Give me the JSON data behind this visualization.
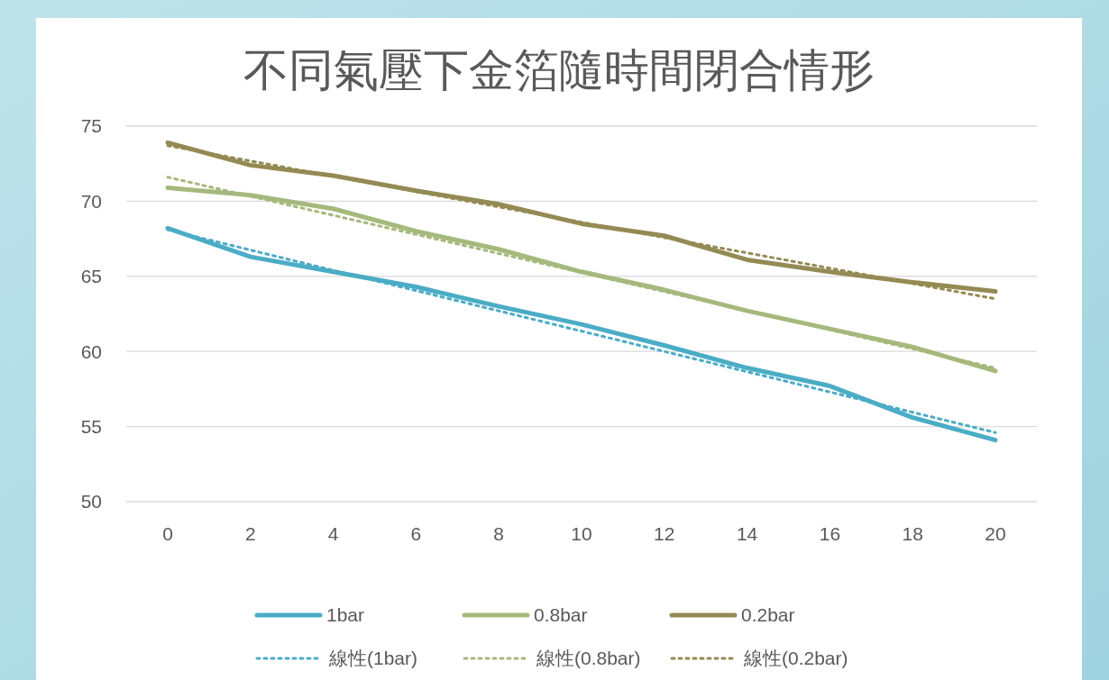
{
  "chart_data": {
    "type": "line",
    "title": "不同氣壓下金箔隨時間閉合情形",
    "categories": [
      "0",
      "2",
      "4",
      "6",
      "8",
      "10",
      "12",
      "14",
      "16",
      "18",
      "20"
    ],
    "ylim": [
      50,
      75
    ],
    "yticks": [
      50,
      55,
      60,
      65,
      70,
      75
    ],
    "grid": "y",
    "legend": "bottom",
    "marker": "none",
    "series": [
      {
        "name": "1bar",
        "color": "#4bacc6",
        "line_style": "solid",
        "values": [
          68.2,
          66.3,
          65.3,
          64.3,
          63.0,
          61.8,
          60.4,
          58.9,
          57.7,
          55.6,
          54.1
        ]
      },
      {
        "name": "0.8bar",
        "color": "#a5b97c",
        "line_style": "solid",
        "values": [
          70.9,
          70.4,
          69.5,
          68.0,
          66.8,
          65.3,
          64.1,
          62.7,
          61.5,
          60.3,
          58.7
        ]
      },
      {
        "name": "0.2bar",
        "color": "#948a54",
        "line_style": "solid",
        "values": [
          73.9,
          72.4,
          71.7,
          70.7,
          69.8,
          68.5,
          67.7,
          66.1,
          65.3,
          64.6,
          64.0
        ]
      },
      {
        "name": "線性(1bar)",
        "type": "line",
        "color": "#4bacc6",
        "line_style": "dotted",
        "x": [
          "0",
          "20"
        ],
        "values": [
          68.1,
          54.6
        ]
      },
      {
        "name": "線性(0.8bar)",
        "type": "line",
        "color": "#a5b97c",
        "line_style": "dotted",
        "x": [
          "0",
          "20"
        ],
        "values": [
          71.6,
          58.9
        ]
      },
      {
        "name": "線性(0.2bar)",
        "type": "line",
        "color": "#948a54",
        "line_style": "dotted",
        "x": [
          "0",
          "20"
        ],
        "values": [
          73.7,
          63.5
        ]
      }
    ]
  }
}
